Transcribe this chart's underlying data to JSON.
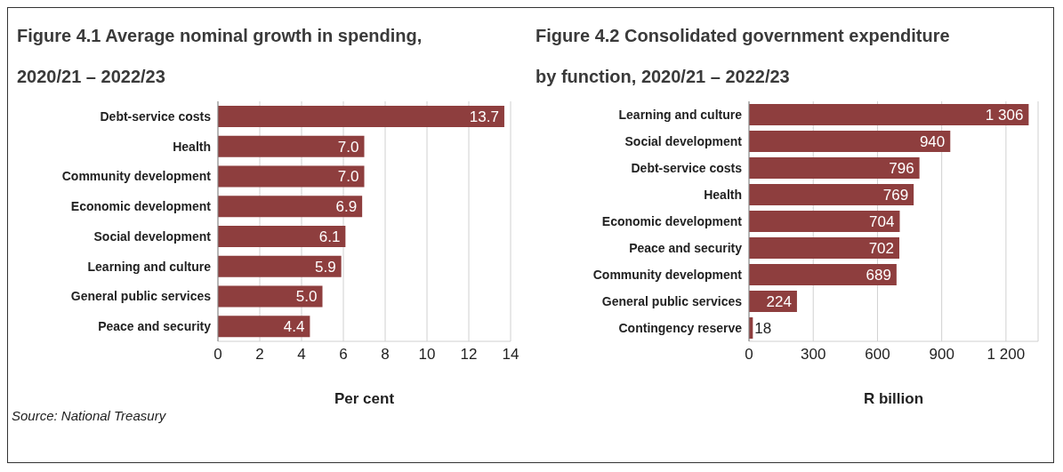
{
  "chart_data": [
    {
      "type": "bar",
      "orientation": "horizontal",
      "title": "Figure 4.1 Average nominal growth in spending, 2020/21 – 2022/23",
      "xlabel": "Per cent",
      "categories": [
        "Debt-service costs",
        "Health",
        "Community development",
        "Economic development",
        "Social development",
        "Learning and culture",
        "General public services",
        "Peace and security"
      ],
      "values": [
        13.7,
        7.0,
        7.0,
        6.9,
        6.1,
        5.9,
        5.0,
        4.4
      ],
      "value_labels": [
        "13.7",
        "7.0",
        "7.0",
        "6.9",
        "6.1",
        "5.9",
        "5.0",
        "4.4"
      ],
      "color": "#8e3e3e",
      "xlim": [
        0,
        14
      ],
      "xticks": [
        0,
        2,
        4,
        6,
        8,
        10,
        12,
        14
      ],
      "grid": "x",
      "legend": false,
      "annotations": [
        "Source: National Treasury"
      ]
    },
    {
      "type": "bar",
      "orientation": "horizontal",
      "title": "Figure 4.2 Consolidated government expenditure by function, 2020/21 – 2022/23",
      "xlabel": "R billion",
      "categories": [
        "Learning and culture",
        "Social development",
        "Debt-service costs",
        "Health",
        "Economic development",
        "Peace and security",
        "Community development",
        "General public services",
        "Contingency reserve"
      ],
      "values": [
        1306,
        940,
        796,
        769,
        704,
        702,
        689,
        224,
        18
      ],
      "value_labels": [
        "1 306",
        "940",
        "796",
        "769",
        "704",
        "702",
        "689",
        "224",
        "18"
      ],
      "color": "#8e3e3e",
      "xlim": [
        0,
        1350
      ],
      "xticks": [
        0,
        300,
        600,
        900,
        {
          "value": 1200,
          "label": "1 200"
        }
      ],
      "grid": "x",
      "legend": false
    }
  ]
}
